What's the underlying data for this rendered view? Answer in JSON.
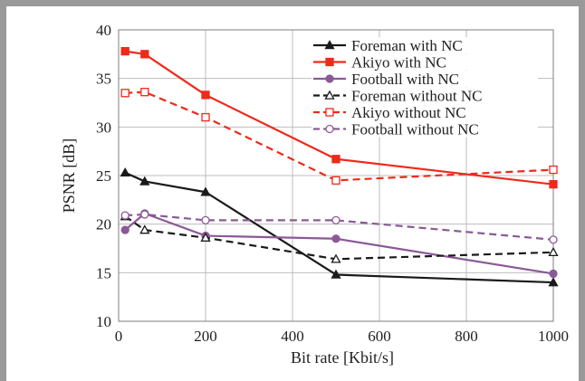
{
  "chart_data": {
    "type": "line",
    "title": "",
    "xlabel": "Bit rate [Kbit/s]",
    "ylabel": "PSNR [dB]",
    "xlim": [
      0,
      1000
    ],
    "ylim": [
      10,
      40
    ],
    "xticks": [
      0,
      200,
      400,
      600,
      800,
      1000
    ],
    "yticks": [
      10,
      15,
      20,
      25,
      30,
      35,
      40
    ],
    "grid": true,
    "legend_position": "top-right",
    "series": [
      {
        "name": "Foreman with NC",
        "color": "#1a1a1a",
        "dash": "solid",
        "marker": "triangle-filled",
        "x": [
          15,
          60,
          200,
          500,
          1000
        ],
        "y": [
          25.3,
          24.4,
          23.3,
          14.8,
          14.0
        ]
      },
      {
        "name": "Akiyo with NC",
        "color": "#ee2a1b",
        "dash": "solid",
        "marker": "square-filled",
        "x": [
          15,
          60,
          200,
          500,
          1000
        ],
        "y": [
          37.8,
          37.5,
          33.3,
          26.7,
          24.1
        ]
      },
      {
        "name": "Football with NC",
        "color": "#8a5a96",
        "dash": "solid",
        "marker": "circle-filled",
        "x": [
          15,
          60,
          200,
          500,
          1000
        ],
        "y": [
          19.4,
          21.1,
          18.8,
          18.5,
          14.9
        ]
      },
      {
        "name": "Foreman without NC",
        "color": "#1a1a1a",
        "dash": "dashed",
        "marker": "triangle-open",
        "x": [
          15,
          60,
          200,
          500,
          1000
        ],
        "y": [
          20.8,
          19.4,
          18.6,
          16.4,
          17.1
        ]
      },
      {
        "name": "Akiyo without NC",
        "color": "#ee2a1b",
        "dash": "dashed",
        "marker": "square-open",
        "x": [
          15,
          60,
          200,
          500,
          1000
        ],
        "y": [
          33.5,
          33.6,
          31.0,
          24.5,
          25.6
        ]
      },
      {
        "name": "Football without NC",
        "color": "#8a5a96",
        "dash": "dashed",
        "marker": "circle-open",
        "x": [
          15,
          60,
          200,
          500,
          1000
        ],
        "y": [
          20.9,
          21.0,
          20.4,
          20.4,
          18.4
        ]
      }
    ]
  }
}
